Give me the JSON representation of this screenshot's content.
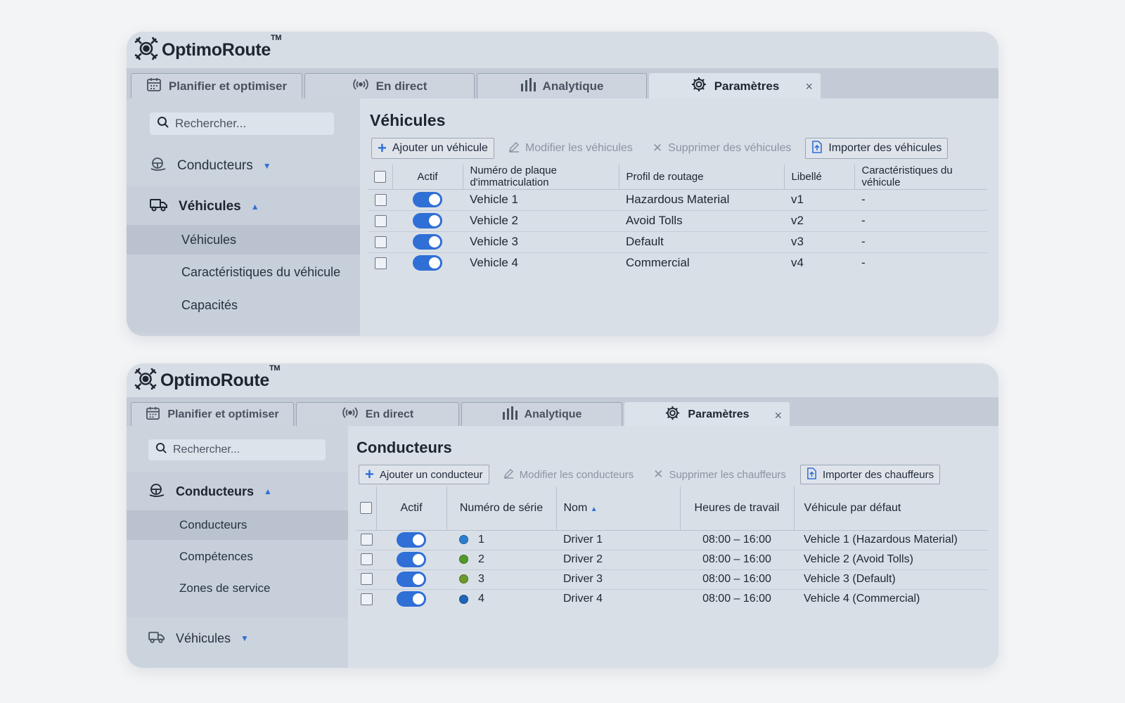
{
  "vehicles_screen": {
    "brand": {
      "name": "OptimoRoute",
      "tm": "TM"
    },
    "tabs": [
      {
        "label": "Planifier et optimiser",
        "icon": "calendar-icon"
      },
      {
        "label": "En direct",
        "icon": "live-signal-icon"
      },
      {
        "label": "Analytique",
        "icon": "bar-chart-icon"
      },
      {
        "label": "Paramètres",
        "icon": "gear-icon",
        "active": true,
        "close": "×"
      }
    ],
    "sidebar": {
      "search_placeholder": "Rechercher...",
      "group_drivers": "Conducteurs",
      "group_vehicles": "Véhicules",
      "sub_items": [
        "Véhicules",
        "Caractéristiques du véhicule",
        "Capacités"
      ]
    },
    "main": {
      "title": "Véhicules",
      "toolbar": {
        "add": "Ajouter un véhicule",
        "edit": "Modifier les véhicules",
        "delete": "Supprimer des véhicules",
        "import": "Importer des véhicules"
      },
      "columns": [
        "Actif",
        "Numéro de plaque d'immatriculation",
        "Profil de routage",
        "Libellé",
        "Caractéristiques du véhicule"
      ],
      "rows": [
        {
          "plate": "Vehicle 1",
          "profile": "Hazardous Material",
          "label": "v1",
          "features": "-",
          "active": true
        },
        {
          "plate": "Vehicle 2",
          "profile": "Avoid Tolls",
          "label": "v2",
          "features": "-",
          "active": true
        },
        {
          "plate": "Vehicle 3",
          "profile": "Default",
          "label": "v3",
          "features": "-",
          "active": true
        },
        {
          "plate": "Vehicle 4",
          "profile": "Commercial",
          "label": "v4",
          "features": "-",
          "active": true
        }
      ]
    }
  },
  "drivers_screen": {
    "brand": {
      "name": "OptimoRoute",
      "tm": "TM"
    },
    "tabs": [
      {
        "label": "Planifier et optimiser",
        "icon": "calendar-icon"
      },
      {
        "label": "En direct",
        "icon": "live-signal-icon"
      },
      {
        "label": "Analytique",
        "icon": "bar-chart-icon"
      },
      {
        "label": "Paramètres",
        "icon": "gear-icon",
        "active": true,
        "close": "×"
      }
    ],
    "sidebar": {
      "search_placeholder": "Rechercher...",
      "group_drivers": "Conducteurs",
      "sub_items": [
        "Conducteurs",
        "Compétences",
        "Zones de service"
      ],
      "group_vehicles": "Véhicules"
    },
    "main": {
      "title": "Conducteurs",
      "toolbar": {
        "add": "Ajouter un conducteur",
        "edit": "Modifier les conducteurs",
        "delete": "Supprimer les chauffeurs",
        "import": "Importer des chauffeurs"
      },
      "columns": [
        "Actif",
        "Numéro de série",
        "Nom",
        "Heures de travail",
        "Véhicule par défaut"
      ],
      "rows": [
        {
          "serial": "1",
          "color": "#2a7fd1",
          "name": "Driver 1",
          "hours": "08:00 – 16:00",
          "vehicle": "Vehicle 1 (Hazardous Material)",
          "active": true
        },
        {
          "serial": "2",
          "color": "#4f9a2a",
          "name": "Driver 2",
          "hours": "08:00 – 16:00",
          "vehicle": "Vehicle 2 (Avoid Tolls)",
          "active": true
        },
        {
          "serial": "3",
          "color": "#6a9a2c",
          "name": "Driver 3",
          "hours": "08:00 – 16:00",
          "vehicle": "Vehicle 3 (Default)",
          "active": true
        },
        {
          "serial": "4",
          "color": "#1f66b8",
          "name": "Driver 4",
          "hours": "08:00 – 16:00",
          "vehicle": "Vehicle 4 (Commercial)",
          "active": true
        }
      ]
    }
  }
}
